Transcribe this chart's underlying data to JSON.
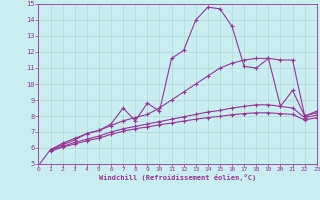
{
  "xlabel": "Windchill (Refroidissement éolien,°C)",
  "xlim": [
    0,
    23
  ],
  "ylim": [
    5,
    15
  ],
  "xticks": [
    0,
    1,
    2,
    3,
    4,
    5,
    6,
    7,
    8,
    9,
    10,
    11,
    12,
    13,
    14,
    15,
    16,
    17,
    18,
    19,
    20,
    21,
    22,
    23
  ],
  "yticks": [
    5,
    6,
    7,
    8,
    9,
    10,
    11,
    12,
    13,
    14,
    15
  ],
  "bg_color": "#c8eef0",
  "line_color": "#993399",
  "grid_color": "#b0d8d0",
  "lines": [
    {
      "x": [
        0,
        1,
        2,
        3,
        4,
        5,
        6,
        7,
        8,
        9,
        10,
        11,
        12,
        13,
        14,
        15,
        16,
        17,
        18,
        19,
        20,
        21,
        22,
        23
      ],
      "y": [
        4.9,
        5.9,
        6.2,
        6.5,
        6.9,
        7.1,
        7.5,
        8.5,
        7.7,
        8.8,
        8.3,
        11.6,
        12.1,
        14.0,
        14.8,
        14.7,
        13.6,
        11.1,
        11.0,
        11.6,
        8.6,
        9.6,
        8.0,
        8.3
      ]
    },
    {
      "x": [
        1,
        2,
        3,
        4,
        5,
        6,
        7,
        8,
        9,
        10,
        11,
        12,
        13,
        14,
        15,
        16,
        17,
        18,
        19,
        20,
        21,
        22,
        23
      ],
      "y": [
        5.9,
        6.3,
        6.6,
        6.9,
        7.1,
        7.4,
        7.7,
        7.9,
        8.1,
        8.5,
        9.0,
        9.5,
        10.0,
        10.5,
        11.0,
        11.3,
        11.5,
        11.6,
        11.6,
        11.5,
        11.5,
        8.0,
        8.2
      ]
    },
    {
      "x": [
        1,
        2,
        3,
        4,
        5,
        6,
        7,
        8,
        9,
        10,
        11,
        12,
        13,
        14,
        15,
        16,
        17,
        18,
        19,
        20,
        21,
        22,
        23
      ],
      "y": [
        5.85,
        6.1,
        6.35,
        6.55,
        6.75,
        7.0,
        7.2,
        7.35,
        7.5,
        7.65,
        7.8,
        7.95,
        8.1,
        8.25,
        8.35,
        8.5,
        8.6,
        8.7,
        8.7,
        8.6,
        8.5,
        7.9,
        8.05
      ]
    },
    {
      "x": [
        1,
        2,
        3,
        4,
        5,
        6,
        7,
        8,
        9,
        10,
        11,
        12,
        13,
        14,
        15,
        16,
        17,
        18,
        19,
        20,
        21,
        22,
        23
      ],
      "y": [
        5.8,
        6.05,
        6.25,
        6.45,
        6.62,
        6.85,
        7.05,
        7.2,
        7.32,
        7.45,
        7.56,
        7.68,
        7.8,
        7.9,
        7.98,
        8.08,
        8.15,
        8.2,
        8.2,
        8.15,
        8.1,
        7.75,
        7.9
      ]
    }
  ]
}
